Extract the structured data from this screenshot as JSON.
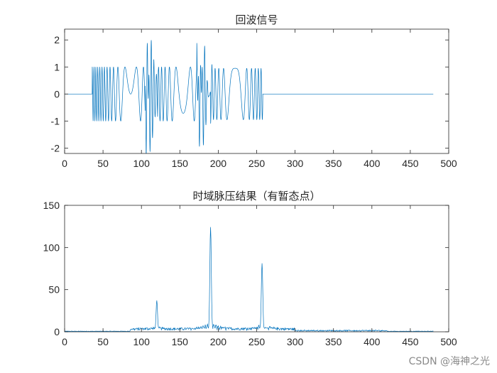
{
  "colors": {
    "series": "#0072BD",
    "axis": "#262626",
    "background": "#ffffff",
    "watermark": "#8a8a8a"
  },
  "watermark": "CSDN @海神之光",
  "chart_data": [
    {
      "type": "line",
      "title": "回波信号",
      "xlabel": "",
      "ylabel": "",
      "xlim": [
        0,
        500
      ],
      "ylim": [
        -2.2,
        2.4
      ],
      "xticks": [
        0,
        50,
        100,
        150,
        200,
        250,
        300,
        350,
        400,
        450,
        500
      ],
      "yticks": [
        -2,
        -1,
        0,
        1,
        2
      ],
      "grid": false,
      "series": [
        {
          "segments": [
            {
              "x": [
                0,
                35
              ],
              "y": [
                0,
                0
              ],
              "kind": "flat"
            },
            {
              "x": [
                36,
                100
              ],
              "kind": "chirp-oscillation",
              "amplitude_range": [
                -1,
                1
              ]
            },
            {
              "x": [
                100,
                125
              ],
              "kind": "overlap-burst",
              "y_extent": [
                -2.2,
                2.4
              ]
            },
            {
              "x": [
                125,
                180
              ],
              "kind": "chirp-oscillation",
              "amplitude_range": [
                -1.5,
                1.5
              ]
            },
            {
              "x": [
                180,
                200
              ],
              "kind": "overlap-burst",
              "y_extent": [
                -1.9,
                2.3
              ]
            },
            {
              "x": [
                200,
                258
              ],
              "kind": "chirp-oscillation",
              "amplitude_range": [
                -1,
                1
              ]
            },
            {
              "x": [
                258,
                480
              ],
              "y": [
                0,
                0
              ],
              "kind": "flat"
            }
          ]
        }
      ]
    },
    {
      "type": "line",
      "title": "时域脉压结果（有暂态点）",
      "xlabel": "",
      "ylabel": "",
      "xlim": [
        0,
        500
      ],
      "ylim": [
        0,
        150
      ],
      "xticks": [
        0,
        50,
        100,
        150,
        200,
        250,
        300,
        350,
        400,
        450,
        500
      ],
      "yticks": [
        0,
        50,
        100,
        150
      ],
      "grid": false,
      "series": [
        {
          "x_range": [
            0,
            480
          ],
          "peaks": [
            {
              "x": 120,
              "y": 37
            },
            {
              "x": 190,
              "y": 124
            },
            {
              "x": 257,
              "y": 81
            }
          ]
        }
      ]
    }
  ]
}
